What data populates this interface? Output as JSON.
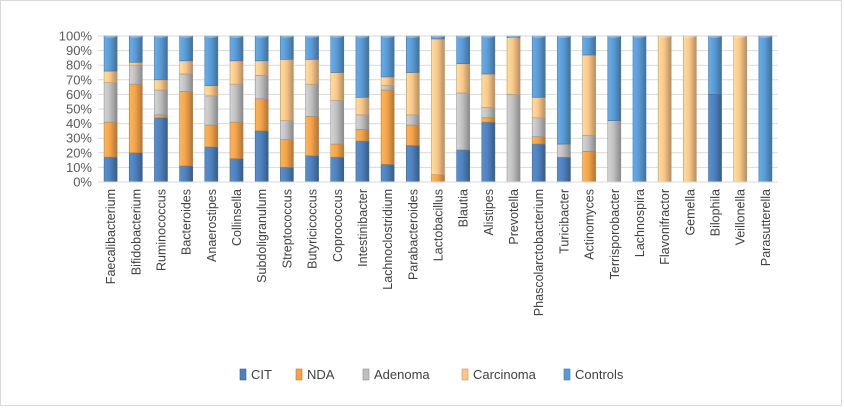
{
  "chart_data": {
    "type": "bar",
    "stacked": true,
    "normalized": true,
    "title": "",
    "xlabel": "",
    "ylabel": "",
    "ylim": [
      0,
      100
    ],
    "yticks": [
      "0%",
      "10%",
      "20%",
      "30%",
      "40%",
      "50%",
      "60%",
      "70%",
      "80%",
      "90%",
      "100%"
    ],
    "grid": true,
    "legend_position": "bottom",
    "categories": [
      "Faecalibacterium",
      "Bifidobacterium",
      "Ruminococcus",
      "Bacteroides",
      "Anaerostipes",
      "Collinsella",
      "Subdoligranulum",
      "Streptococcus",
      "Butyricicoccus",
      "Coprococcus",
      "Intestinibacter",
      "Lachnoclostridium",
      "Parabacteroides",
      "Lactobacillus",
      "Blautia",
      "Alistipes",
      "Prevotella",
      "Phascolarctobacterium",
      "Turicibacter",
      "Actinomyces",
      "Terrisporobacter",
      "Lachnospira",
      "Flavonifractor",
      "Gemella",
      "Bilophila",
      "Veillonella",
      "Parasutterella"
    ],
    "series": [
      {
        "name": "CIT",
        "color": "#4f81bd",
        "values": [
          17,
          20,
          44,
          11,
          24,
          16,
          35,
          10,
          18,
          17,
          28,
          12,
          25,
          0,
          22,
          41,
          0,
          26,
          17,
          0,
          0,
          0,
          0,
          0,
          60,
          0,
          0
        ]
      },
      {
        "name": "NDA",
        "color": "#f4a34b",
        "values": [
          24,
          47,
          2,
          51,
          15,
          25,
          22,
          19,
          27,
          9,
          8,
          51,
          14,
          5,
          0,
          3,
          0,
          5,
          0,
          21,
          0,
          0,
          0,
          0,
          0,
          0,
          0
        ]
      },
      {
        "name": "Adenoma",
        "color": "#bfbfbf",
        "values": [
          27,
          13,
          17,
          12,
          20,
          26,
          16,
          13,
          22,
          30,
          10,
          3,
          7,
          0,
          39,
          7,
          60,
          13,
          9,
          11,
          42,
          0,
          0,
          0,
          0,
          0,
          0
        ]
      },
      {
        "name": "Carcinoma",
        "color": "#fac78a",
        "values": [
          8,
          2,
          7,
          9,
          7,
          16,
          10,
          42,
          17,
          19,
          12,
          6,
          29,
          93,
          20,
          23,
          39,
          14,
          0,
          55,
          0,
          0,
          100,
          100,
          0,
          100,
          0
        ]
      },
      {
        "name": "Controls",
        "color": "#5b9bd5",
        "values": [
          24,
          18,
          30,
          17,
          34,
          17,
          17,
          16,
          16,
          25,
          42,
          28,
          25,
          2,
          19,
          26,
          1,
          42,
          74,
          13,
          58,
          100,
          0,
          0,
          40,
          0,
          100
        ]
      }
    ]
  }
}
